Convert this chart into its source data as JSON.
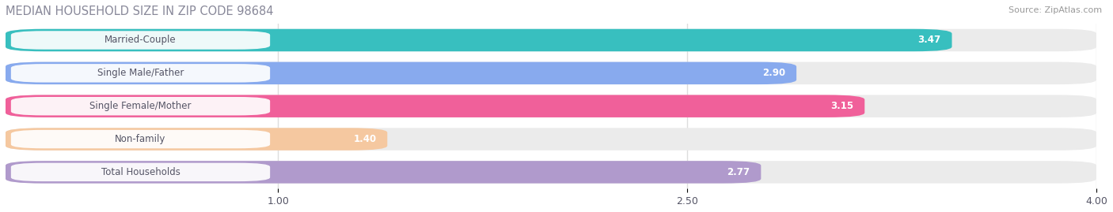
{
  "title": "MEDIAN HOUSEHOLD SIZE IN ZIP CODE 98684",
  "source": "Source: ZipAtlas.com",
  "categories": [
    "Married-Couple",
    "Single Male/Father",
    "Single Female/Mother",
    "Non-family",
    "Total Households"
  ],
  "values": [
    3.47,
    2.9,
    3.15,
    1.4,
    2.77
  ],
  "bar_colors": [
    "#38bfbf",
    "#88aaee",
    "#f0609a",
    "#f5c8a0",
    "#b09acc"
  ],
  "xlim": [
    0,
    4.0
  ],
  "xmin": 0.0,
  "xmax": 4.0,
  "xticks": [
    1.0,
    2.5,
    4.0
  ],
  "label_text_color": "#555566",
  "bg_color": "#ffffff",
  "bar_bg_color": "#ebebeb",
  "title_color": "#888899",
  "source_color": "#999999",
  "grid_color": "#dddddd",
  "value_label_color": "white"
}
